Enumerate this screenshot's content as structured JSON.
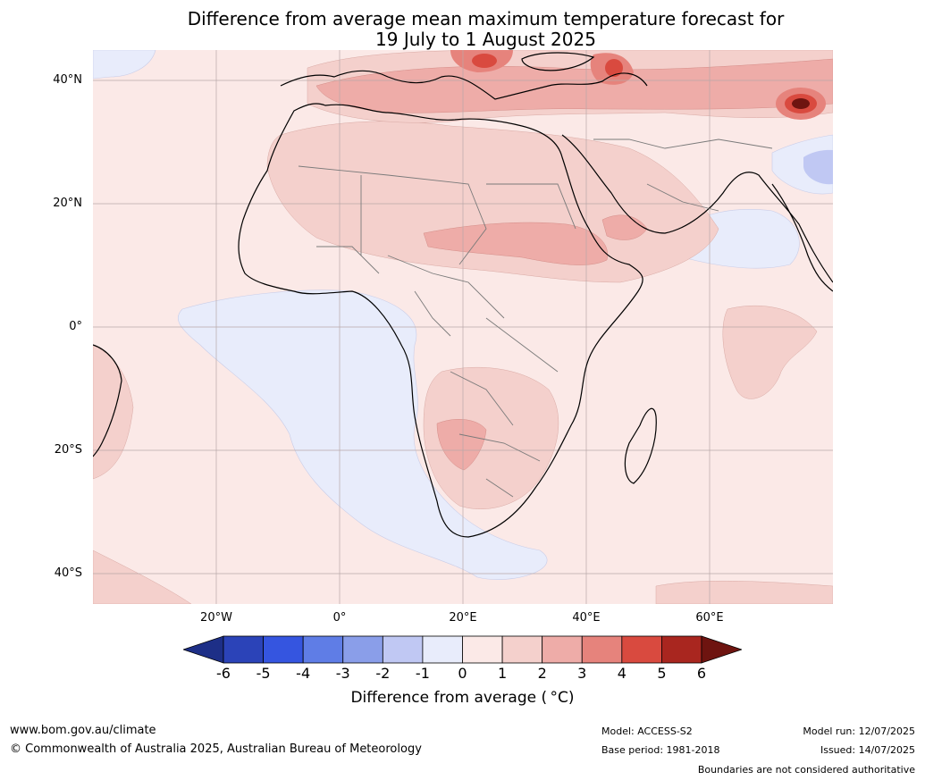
{
  "title": {
    "line1": "Difference from average mean maximum temperature forecast for",
    "line2": "19 July to 1 August 2025"
  },
  "lat_labels": [
    "40°N",
    "20°N",
    "0°",
    "20°S",
    "40°S"
  ],
  "lon_labels": [
    "20°W",
    "0°",
    "20°E",
    "40°E",
    "60°E"
  ],
  "colorbar": {
    "ticks": [
      "-6",
      "-5",
      "-4",
      "-3",
      "-2",
      "-1",
      "0",
      "1",
      "2",
      "3",
      "4",
      "5",
      "6"
    ],
    "colors": [
      "#1d2f87",
      "#2b43b8",
      "#3555e0",
      "#5f7de6",
      "#8a9ee9",
      "#c0c8f3",
      "#e8ecfb",
      "#fbe9e7",
      "#f4d0cc",
      "#eeaca8",
      "#e6837c",
      "#d94a3f",
      "#a9261f",
      "#6e1410"
    ],
    "label": "Difference from average ( °C)"
  },
  "footer": {
    "url": "www.bom.gov.au/climate",
    "copyright": "© Commonwealth of Australia 2025, Australian Bureau of Meteorology",
    "model": "Model: ACCESS-S2",
    "base_period": "Base period: 1981-2018",
    "model_run": "Model run: 12/07/2025",
    "issued": "Issued: 14/07/2025",
    "disclaimer": "Boundaries are not considered authoritative"
  }
}
